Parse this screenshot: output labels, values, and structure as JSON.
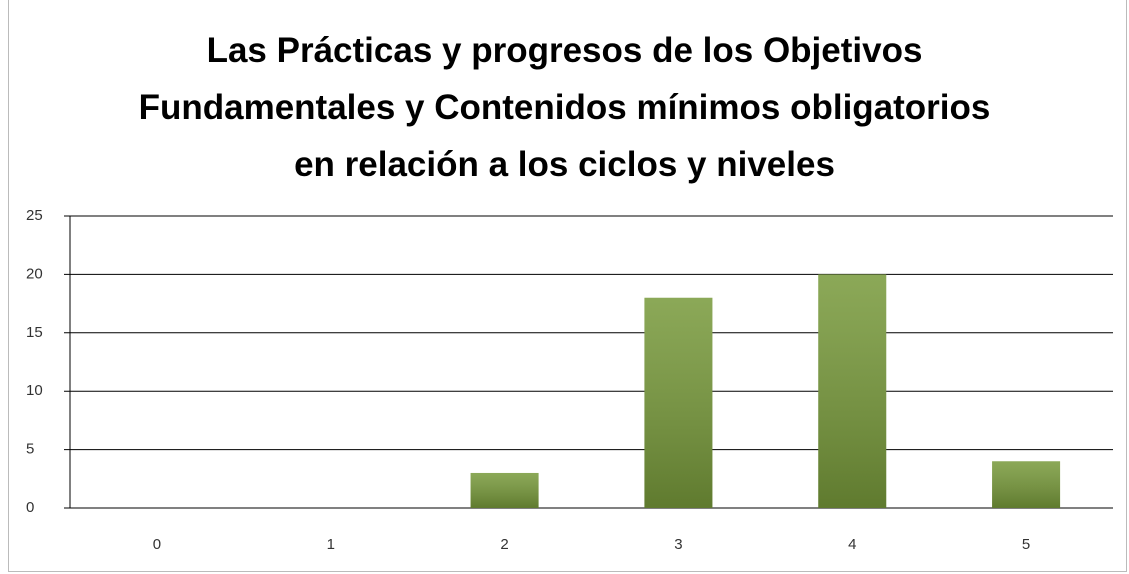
{
  "chart_data": {
    "type": "bar",
    "title": "Las Prácticas y progresos de los Objetivos Fundamentales y Contenidos mínimos obligatorios en relación a los ciclos y niveles",
    "categories": [
      "0",
      "1",
      "2",
      "3",
      "4",
      "5"
    ],
    "values": [
      0,
      0,
      3,
      18,
      20,
      4
    ],
    "color": "#77993a",
    "ylim": [
      0,
      25
    ],
    "yticks": [
      0,
      5,
      10,
      15,
      20,
      25
    ],
    "grid": true
  }
}
